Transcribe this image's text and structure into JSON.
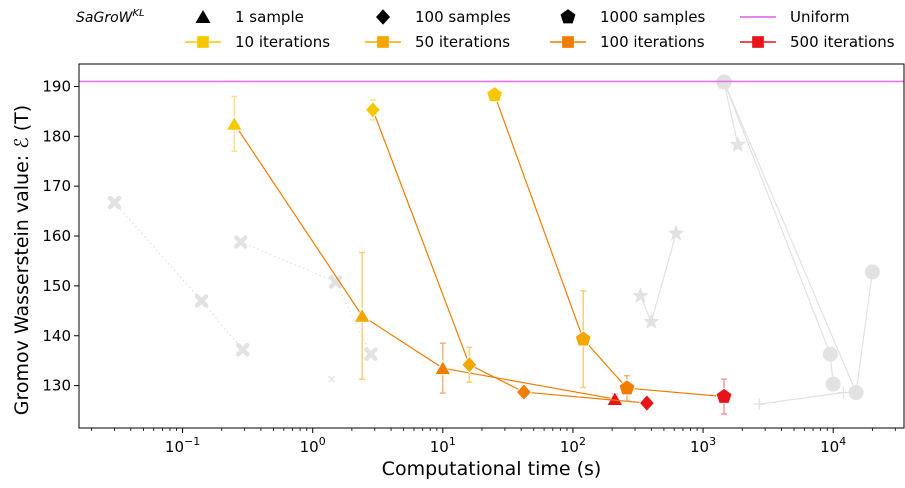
{
  "chart_data": {
    "type": "scatter",
    "xlabel": "Computational time (s)",
    "ylabel": "Gromov Wasserstein value: ℰ (T)",
    "xscale": "log",
    "xlim": [
      0.016,
      35000
    ],
    "ylim": [
      121.5,
      194.5
    ],
    "y_ticks": [
      130,
      140,
      150,
      160,
      170,
      180,
      190
    ],
    "x_ticks": [
      {
        "value": 0.1,
        "base": "10",
        "exp": "−1"
      },
      {
        "value": 1,
        "base": "10",
        "exp": "0"
      },
      {
        "value": 10,
        "base": "10",
        "exp": "1"
      },
      {
        "value": 100,
        "base": "10",
        "exp": "2"
      },
      {
        "value": 1000,
        "base": "10",
        "exp": "3"
      },
      {
        "value": 10000,
        "base": "10",
        "exp": "4"
      }
    ],
    "uniform": {
      "value": 191.0,
      "color": "#e377e8"
    },
    "legend": {
      "title_main": "SaGroW",
      "title_sup": "KL",
      "placement": "top",
      "entries": [
        {
          "label": "1 sample",
          "kind": "marker",
          "marker": "triangle",
          "color": "#000000"
        },
        {
          "label": "100 samples",
          "kind": "marker",
          "marker": "diamond",
          "color": "#000000"
        },
        {
          "label": "1000 samples",
          "kind": "marker",
          "marker": "pentagon",
          "color": "#000000"
        },
        {
          "label": "Uniform",
          "kind": "line",
          "color": "#e377e8"
        },
        {
          "label": "10 iterations",
          "kind": "linemarker",
          "marker": "square",
          "color": "#f7c800"
        },
        {
          "label": "50 iterations",
          "kind": "linemarker",
          "marker": "square",
          "color": "#f4a700"
        },
        {
          "label": "100 iterations",
          "kind": "linemarker",
          "marker": "square",
          "color": "#f07c00"
        },
        {
          "label": "500 iterations",
          "kind": "linemarker",
          "marker": "square",
          "color": "#e8141a"
        }
      ]
    },
    "main_series": [
      {
        "sample": "1 sample",
        "marker": "triangle",
        "line_color": "#f07c00",
        "points": [
          {
            "x": 0.25,
            "y": 182.5,
            "err": 5.5,
            "iter": "10 iterations",
            "color": "#f7c800"
          },
          {
            "x": 2.4,
            "y": 144.0,
            "err": 12.7,
            "iter": "50 iterations",
            "color": "#f4a700"
          },
          {
            "x": 10,
            "y": 133.5,
            "err": 5.0,
            "iter": "100 iterations",
            "color": "#f07c00"
          },
          {
            "x": 210,
            "y": 127.3,
            "err": 1.0,
            "iter": "500 iterations",
            "color": "#e8141a"
          }
        ]
      },
      {
        "sample": "100 samples",
        "marker": "diamond",
        "line_color": "#f07c00",
        "points": [
          {
            "x": 2.9,
            "y": 185.3,
            "err": 2.0,
            "iter": "10 iterations",
            "color": "#f7c800"
          },
          {
            "x": 16,
            "y": 134.2,
            "err": 3.5,
            "iter": "50 iterations",
            "color": "#f4a700"
          },
          {
            "x": 42,
            "y": 128.7,
            "err": 1.2,
            "iter": "100 iterations",
            "color": "#f07c00"
          },
          {
            "x": 370,
            "y": 126.5,
            "err": 0.7,
            "iter": "500 iterations",
            "color": "#e8141a"
          }
        ]
      },
      {
        "sample": "1000 samples",
        "marker": "pentagon",
        "line_color": "#f07c00",
        "points": [
          {
            "x": 25,
            "y": 188.3,
            "err": 0.8,
            "iter": "10 iterations",
            "color": "#f7c800"
          },
          {
            "x": 120,
            "y": 139.3,
            "err": 9.7,
            "iter": "50 iterations",
            "color": "#f4a700"
          },
          {
            "x": 260,
            "y": 129.5,
            "err": 2.5,
            "iter": "100 iterations",
            "color": "#f07c00"
          },
          {
            "x": 1450,
            "y": 127.8,
            "err": 3.5,
            "iter": "500 iterations",
            "color": "#e8141a"
          }
        ]
      }
    ],
    "background_series": [
      {
        "marker": "xthick",
        "style": "dotted",
        "points": [
          {
            "x": 0.03,
            "y": 166.7
          },
          {
            "x": 0.14,
            "y": 147.0
          },
          {
            "x": 0.29,
            "y": 137.2
          }
        ]
      },
      {
        "marker": "xthick",
        "style": "dotted",
        "points": [
          {
            "x": 0.28,
            "y": 158.8
          },
          {
            "x": 1.5,
            "y": 150.8
          },
          {
            "x": 2.8,
            "y": 136.3
          }
        ]
      },
      {
        "marker": "xthin",
        "style": "dotted",
        "points": [
          {
            "x": 1.4,
            "y": 131.3
          }
        ]
      },
      {
        "marker": "star",
        "style": "solid",
        "points": [
          {
            "x": 330,
            "y": 148.0
          },
          {
            "x": 400,
            "y": 142.8
          },
          {
            "x": 620,
            "y": 160.5
          }
        ]
      },
      {
        "marker": "star",
        "style": "solid",
        "points": [
          {
            "x": 1450,
            "y": 190.8
          },
          {
            "x": 1850,
            "y": 178.3
          }
        ]
      },
      {
        "marker": "circle",
        "style": "solid",
        "points": [
          {
            "x": 1450,
            "y": 190.9
          },
          {
            "x": 9500,
            "y": 136.3
          },
          {
            "x": 10000,
            "y": 130.3
          }
        ]
      },
      {
        "marker": "circle",
        "style": "solid",
        "points": [
          {
            "x": 1450,
            "y": 190.9
          },
          {
            "x": 15000,
            "y": 128.6
          },
          {
            "x": 20000,
            "y": 152.8
          }
        ]
      },
      {
        "marker": "plus",
        "style": "solid",
        "points": [
          {
            "x": 12000,
            "y": 128.6
          },
          {
            "x": 2700,
            "y": 126.3
          }
        ]
      }
    ]
  }
}
